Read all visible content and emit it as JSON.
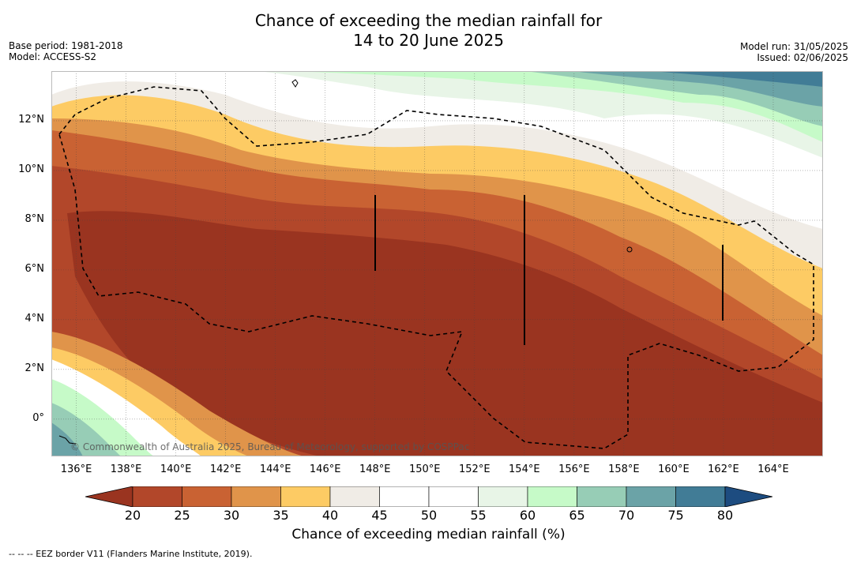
{
  "header": {
    "title_line1": "Chance of exceeding the median rainfall for",
    "title_line2": "14 to 20 June 2025",
    "base_period": "Base period: 1981-2018",
    "model": "Model: ACCESS-S2",
    "model_run": "Model run: 31/05/2025",
    "issued": "Issued: 02/06/2025"
  },
  "map": {
    "credit": "© Commonwealth of Australia 2025, Bureau of Meteorology, supported by COSPPac",
    "lat_labels": [
      "12°N",
      "10°N",
      "8°N",
      "6°N",
      "4°N",
      "2°N",
      "0°"
    ],
    "lon_labels": [
      "136°E",
      "138°E",
      "140°E",
      "142°E",
      "144°E",
      "146°E",
      "148°E",
      "150°E",
      "152°E",
      "154°E",
      "156°E",
      "158°E",
      "160°E",
      "162°E",
      "164°E"
    ],
    "lon_range": [
      135,
      166
    ],
    "lat_range": [
      -1.5,
      14
    ]
  },
  "colorbar": {
    "title": "Chance of exceeding median rainfall (%)",
    "ticks": [
      "20",
      "25",
      "30",
      "35",
      "40",
      "45",
      "50",
      "55",
      "60",
      "65",
      "70",
      "75",
      "80"
    ],
    "colors": [
      "#9a3420",
      "#b2472a",
      "#c96233",
      "#e0944a",
      "#fdcb64",
      "#f0ece6",
      "#ffffff",
      "#ffffff",
      "#e8f5e7",
      "#c6fac8",
      "#97cdb6",
      "#6ba3a7",
      "#417c96",
      "#1d4c80"
    ]
  },
  "footnote": "--  --  -- EEZ border V11 (Flanders Marine Institute, 2019)."
}
